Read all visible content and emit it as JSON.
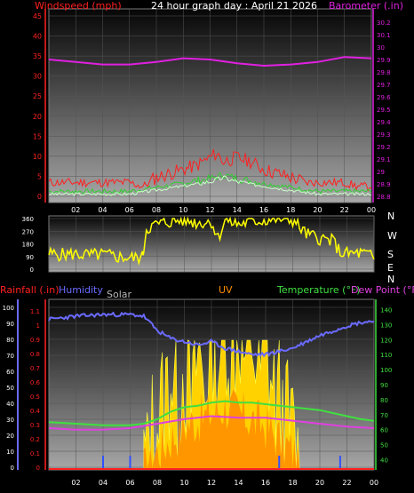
{
  "header": {
    "title": "24 hour graph day : April 21 2026",
    "left_label": "Windspeed (mph)",
    "right_label": "Barometer (.in)"
  },
  "bottom_labels": {
    "rainfall": "Rainfall (.in)",
    "humidity": "Humidity",
    "solar": "Solar",
    "uv": "UV",
    "temperature": "Temperature (°F)",
    "dewpoint": "Dew Point (°F)"
  },
  "colors": {
    "wind": "#ff0000",
    "gust": "#ff2020",
    "barometer": "#e020e0",
    "direction": "#ffff00",
    "humidity": "#6a6aff",
    "solar": "#ffd200",
    "uv": "#ff8c00",
    "temperature": "#40e040",
    "dewpoint": "#e040e0",
    "rain": "#ff2020",
    "axis_left": "#ff2020",
    "axis_right": "#e020e0"
  },
  "chart_data": [
    {
      "type": "line",
      "name": "wind-barometer",
      "x_ticks": [
        "02",
        "04",
        "06",
        "08",
        "10",
        "12",
        "14",
        "16",
        "18",
        "20",
        "22",
        "00"
      ],
      "y_left_ticks": [
        "0",
        "5",
        "10",
        "15",
        "20",
        "25",
        "30",
        "35",
        "40",
        "45"
      ],
      "y_left_range": [
        0,
        45
      ],
      "y_right_ticks": [
        "28.8",
        "28.9",
        "29",
        "29.1",
        "29.2",
        "29.3",
        "29.4",
        "29.5",
        "29.6",
        "29.7",
        "29.8",
        "29.9",
        "30",
        "30.1",
        "30.2"
      ],
      "y_right_range": [
        28.8,
        30.25
      ],
      "x_range": [
        0,
        24
      ],
      "wind_gust": [
        [
          0,
          3
        ],
        [
          1,
          3
        ],
        [
          2,
          3
        ],
        [
          3,
          3
        ],
        [
          4,
          3
        ],
        [
          5,
          3
        ],
        [
          6,
          3
        ],
        [
          7,
          2
        ],
        [
          8,
          4
        ],
        [
          9,
          5
        ],
        [
          10,
          6
        ],
        [
          11,
          7
        ],
        [
          12,
          9
        ],
        [
          12.5,
          10
        ],
        [
          13,
          8
        ],
        [
          14,
          9
        ],
        [
          15,
          8
        ],
        [
          16,
          6
        ],
        [
          17,
          5
        ],
        [
          18,
          4
        ],
        [
          19,
          3
        ],
        [
          20,
          3
        ],
        [
          21,
          3
        ],
        [
          22,
          3
        ],
        [
          23,
          2
        ],
        [
          24,
          2
        ]
      ],
      "wind_avg": [
        [
          0,
          1
        ],
        [
          2,
          1
        ],
        [
          4,
          1
        ],
        [
          6,
          1
        ],
        [
          8,
          2
        ],
        [
          10,
          3
        ],
        [
          12,
          4
        ],
        [
          13,
          5
        ],
        [
          14,
          4
        ],
        [
          16,
          3
        ],
        [
          18,
          2
        ],
        [
          20,
          1
        ],
        [
          22,
          1
        ],
        [
          24,
          1
        ]
      ],
      "barometer": [
        [
          0,
          29.9
        ],
        [
          2,
          29.88
        ],
        [
          4,
          29.86
        ],
        [
          6,
          29.86
        ],
        [
          8,
          29.88
        ],
        [
          10,
          29.91
        ],
        [
          12,
          29.9
        ],
        [
          14,
          29.87
        ],
        [
          16,
          29.85
        ],
        [
          18,
          29.86
        ],
        [
          20,
          29.88
        ],
        [
          22,
          29.92
        ],
        [
          24,
          29.91
        ]
      ]
    },
    {
      "type": "line",
      "name": "wind-direction",
      "y_ticks": [
        "0",
        "90",
        "180",
        "270",
        "360"
      ],
      "y_range": [
        0,
        360
      ],
      "compass_labels": [
        "N",
        "W",
        "S",
        "E",
        "N"
      ],
      "x_range": [
        0,
        24
      ],
      "direction": [
        [
          0,
          90
        ],
        [
          1,
          85
        ],
        [
          2,
          88
        ],
        [
          3,
          80
        ],
        [
          4,
          85
        ],
        [
          5,
          70
        ],
        [
          6,
          60
        ],
        [
          6.9,
          65
        ],
        [
          7,
          130
        ],
        [
          7.2,
          270
        ],
        [
          8,
          300
        ],
        [
          9,
          320
        ],
        [
          10,
          330
        ],
        [
          11,
          310
        ],
        [
          12,
          320
        ],
        [
          12.5,
          200
        ],
        [
          13,
          330
        ],
        [
          14,
          300
        ],
        [
          15,
          320
        ],
        [
          16,
          330
        ],
        [
          17,
          340
        ],
        [
          18,
          330
        ],
        [
          19,
          230
        ],
        [
          20,
          200
        ],
        [
          21,
          180
        ],
        [
          21.5,
          100
        ],
        [
          22,
          90
        ],
        [
          23,
          95
        ],
        [
          24,
          70
        ]
      ]
    },
    {
      "type": "line",
      "name": "rain-humidity-solar-uv-temp",
      "x_ticks": [
        "02",
        "04",
        "06",
        "08",
        "10",
        "12",
        "14",
        "16",
        "18",
        "20",
        "22",
        "00"
      ],
      "y_left_outer_ticks": [
        "0",
        "10",
        "20",
        "30",
        "40",
        "50",
        "60",
        "70",
        "80",
        "90",
        "100"
      ],
      "y_left_inner_ticks": [
        "0",
        "0.1",
        "0.2",
        "0.3",
        "0.4",
        "0.5",
        "0.6",
        "0.7",
        "0.8",
        "0.9",
        "1",
        "1.1"
      ],
      "y_right_ticks": [
        "40",
        "50",
        "60",
        "70",
        "80",
        "90",
        "100",
        "110",
        "120",
        "130",
        "140"
      ],
      "y_right_range": [
        35,
        145
      ],
      "humidity_range": [
        0,
        100
      ],
      "x_range": [
        0,
        24
      ],
      "humidity": [
        [
          0,
          92
        ],
        [
          2,
          94
        ],
        [
          4,
          95
        ],
        [
          6,
          95
        ],
        [
          7,
          94
        ],
        [
          8,
          85
        ],
        [
          9,
          80
        ],
        [
          10,
          78
        ],
        [
          11,
          76
        ],
        [
          12,
          78
        ],
        [
          13,
          74
        ],
        [
          14,
          72
        ],
        [
          15,
          70
        ],
        [
          16,
          70
        ],
        [
          17,
          72
        ],
        [
          18,
          74
        ],
        [
          19,
          78
        ],
        [
          20,
          82
        ],
        [
          21,
          85
        ],
        [
          22,
          88
        ],
        [
          23,
          90
        ],
        [
          24,
          91
        ]
      ],
      "temperature": [
        [
          0,
          65
        ],
        [
          2,
          64
        ],
        [
          4,
          63
        ],
        [
          6,
          63
        ],
        [
          7,
          64
        ],
        [
          8,
          67
        ],
        [
          9,
          72
        ],
        [
          10,
          75
        ],
        [
          11,
          76
        ],
        [
          12,
          78
        ],
        [
          13,
          79
        ],
        [
          14,
          78
        ],
        [
          15,
          78
        ],
        [
          16,
          77
        ],
        [
          17,
          76
        ],
        [
          18,
          75
        ],
        [
          19,
          74
        ],
        [
          20,
          73
        ],
        [
          21,
          71
        ],
        [
          22,
          69
        ],
        [
          23,
          67
        ],
        [
          24,
          66
        ]
      ],
      "dewpoint": [
        [
          0,
          61
        ],
        [
          2,
          60
        ],
        [
          4,
          60
        ],
        [
          6,
          61
        ],
        [
          8,
          64
        ],
        [
          10,
          67
        ],
        [
          12,
          69
        ],
        [
          14,
          68
        ],
        [
          16,
          68
        ],
        [
          18,
          66
        ],
        [
          20,
          64
        ],
        [
          22,
          62
        ],
        [
          24,
          61
        ]
      ],
      "solar_peak_pct": [
        [
          7,
          0
        ],
        [
          7.5,
          5
        ],
        [
          8,
          15
        ],
        [
          8.5,
          30
        ],
        [
          9,
          55
        ],
        [
          9.5,
          30
        ],
        [
          10,
          60
        ],
        [
          10.5,
          25
        ],
        [
          11,
          70
        ],
        [
          11.5,
          40
        ],
        [
          12,
          90
        ],
        [
          12.5,
          60
        ],
        [
          13,
          100
        ],
        [
          13.5,
          55
        ],
        [
          14,
          95
        ],
        [
          14.5,
          60
        ],
        [
          15,
          80
        ],
        [
          15.5,
          50
        ],
        [
          16,
          75
        ],
        [
          16.5,
          40
        ],
        [
          17,
          30
        ],
        [
          17.5,
          15
        ],
        [
          18,
          5
        ],
        [
          18.5,
          0
        ]
      ],
      "uv_pct": [
        [
          7,
          0
        ],
        [
          8,
          5
        ],
        [
          9,
          15
        ],
        [
          10,
          25
        ],
        [
          11,
          30
        ],
        [
          12,
          35
        ],
        [
          13,
          40
        ],
        [
          14,
          35
        ],
        [
          15,
          30
        ],
        [
          16,
          25
        ],
        [
          17,
          15
        ],
        [
          18,
          5
        ],
        [
          18.5,
          0
        ]
      ],
      "rain_markers_hours": [
        4,
        6,
        17,
        21.5
      ]
    }
  ]
}
